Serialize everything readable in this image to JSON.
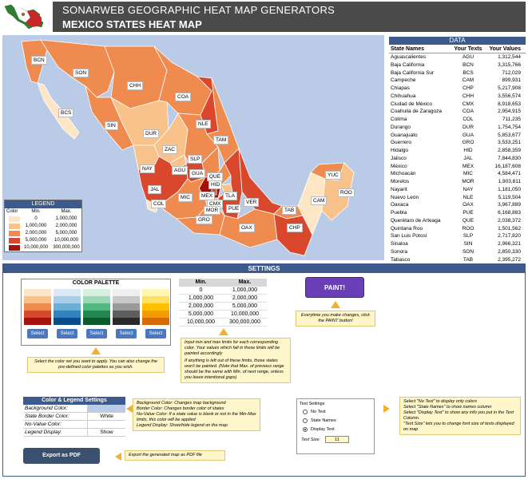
{
  "header": {
    "title": "SONARWEB GEOGRAPHIC HEAT MAP GENERATORS",
    "subtitle": "MEXICO STATES HEAT MAP"
  },
  "colors": {
    "header_bg": "#4a4a4a",
    "accent": "#3c5a8c",
    "map_bg": "#b9cbe6",
    "range": [
      "#fde6c6",
      "#f9c28a",
      "#ef8b4e",
      "#d9472c",
      "#a4120e"
    ]
  },
  "map_labels": [
    "BCN",
    "SON",
    "CHH",
    "COA",
    "NLE",
    "TAM",
    "BCS",
    "SIN",
    "DUR",
    "ZAC",
    "SLP",
    "NAY",
    "AGU",
    "JAL",
    "GUA",
    "QUE",
    "HID",
    "MEX",
    "CMX",
    "TLA",
    "PUE",
    "VER",
    "MIC",
    "MOR",
    "COL",
    "GRO",
    "OAX",
    "TAB",
    "CHP",
    "CAM",
    "YUC",
    "ROO"
  ],
  "legend": {
    "title": "LEGEND",
    "headers": [
      "Color",
      "Min.",
      "Max."
    ],
    "rows": [
      {
        "min": "0",
        "max": "1,000,000"
      },
      {
        "min": "1,000,000",
        "max": "2,000,000"
      },
      {
        "min": "2,000,000",
        "max": "5,000,000"
      },
      {
        "min": "5,000,000",
        "max": "10,000,000"
      },
      {
        "min": "10,000,000",
        "max": "300,000,000"
      }
    ]
  },
  "data_table": {
    "title": "DATA",
    "headers": [
      "State Names",
      "Your Texts",
      "Your Values"
    ],
    "rows": [
      [
        "Aguascalientes",
        "AGU",
        "1,312,544"
      ],
      [
        "Baja California",
        "BCN",
        "3,315,766"
      ],
      [
        "Baja California Sur",
        "BCS",
        "712,029"
      ],
      [
        "Campeche",
        "CAM",
        "899,931"
      ],
      [
        "Chiapas",
        "CHP",
        "5,217,908"
      ],
      [
        "Chihuahua",
        "CHH",
        "3,556,574"
      ],
      [
        "Ciudad de México",
        "CMX",
        "8,918,653"
      ],
      [
        "Coahuila de Zaragoza",
        "COA",
        "2,954,915"
      ],
      [
        "Colima",
        "COL",
        "711,235"
      ],
      [
        "Durango",
        "DUR",
        "1,754,754"
      ],
      [
        "Guanajuato",
        "GUA",
        "5,853,677"
      ],
      [
        "Guerrero",
        "GRO",
        "3,533,251"
      ],
      [
        "Hidalgo",
        "HID",
        "2,858,359"
      ],
      [
        "Jalisco",
        "JAL",
        "7,844,830"
      ],
      [
        "México",
        "MEX",
        "16,187,608"
      ],
      [
        "Michoacán",
        "MIC",
        "4,584,471"
      ],
      [
        "Morelos",
        "MOR",
        "1,903,811"
      ],
      [
        "Nayarit",
        "NAY",
        "1,181,050"
      ],
      [
        "Nuevo León",
        "NLE",
        "5,119,504"
      ],
      [
        "Oaxaca",
        "OAX",
        "3,967,889"
      ],
      [
        "Puebla",
        "PUE",
        "6,168,883"
      ],
      [
        "Querétaro de Arteaga",
        "QUE",
        "2,038,372"
      ],
      [
        "Quintana Roo",
        "ROO",
        "1,501,562"
      ],
      [
        "San Luis Potosí",
        "SLP",
        "2,717,820"
      ],
      [
        "Sinaloa",
        "SIN",
        "2,966,321"
      ],
      [
        "Sonora",
        "SON",
        "2,850,330"
      ],
      [
        "Tabasco",
        "TAB",
        "2,395,272"
      ],
      [
        "Tamaulipas",
        "TAM",
        "3,441,698"
      ],
      [
        "Tlaxcala",
        "TLA",
        "1,272,847"
      ],
      [
        "Veracruz",
        "VER",
        "8,112,505"
      ],
      [
        "Yucatán",
        "YUC",
        "2,097,175"
      ],
      [
        "Zacatecas",
        "ZAC",
        "1,579,209"
      ]
    ]
  },
  "settings": {
    "title": "SETTINGS",
    "palette_title": "COLOR PALETTE",
    "select_label": "Select",
    "palettes": [
      [
        "#fde6c6",
        "#f9c28a",
        "#ef8b4e",
        "#d9472c",
        "#a4120e"
      ],
      [
        "#dbe9f6",
        "#a9cde8",
        "#6baed6",
        "#3182bd",
        "#0b4c8c"
      ],
      [
        "#d6f0e0",
        "#9bd8b5",
        "#52b883",
        "#23884f",
        "#0a5a2c"
      ],
      [
        "#efefef",
        "#c8c8c8",
        "#9a9a9a",
        "#5e5e5e",
        "#2a2a2a"
      ],
      [
        "#fff7b0",
        "#ffe066",
        "#ffc000",
        "#f59b00",
        "#d46a00"
      ]
    ],
    "minmax_headers": [
      "Min.",
      "Max."
    ],
    "minmax_rows": [
      [
        "0",
        "1,000,000"
      ],
      [
        "1,000,000",
        "2,000,000"
      ],
      [
        "2,000,000",
        "5,000,000"
      ],
      [
        "5,000,000",
        "10,000,000"
      ],
      [
        "10,000,000",
        "300,000,000"
      ]
    ],
    "paint_label": "PAINT!",
    "paint_note": "Everytime you make changes, click the PAINT button!",
    "palette_note": "Select the color set you want to apply. You can also change the pre-defined color palettes as you wish.",
    "minmax_note_1": "Input min and max limits for each corresponding color. Your values which fall in these limits will be painted accordingly",
    "minmax_note_2": "If anything is left out of these limits, those states won't be painted. (Note that Max. of previous range should be the same with Min. of next range, unless you leave intentional gaps)",
    "cl_title": "Color & Legend Settings",
    "cl_rows": [
      {
        "key": "Background Color:",
        "value": ""
      },
      {
        "key": "State Border Color:",
        "value": "White"
      },
      {
        "key": "No-Value Color:",
        "value": ""
      },
      {
        "key": "Legend Display:",
        "value": "Show"
      }
    ],
    "cl_note_1": "Background Color: Changes map background",
    "cl_note_2": "Border Color: Changes border color of states",
    "cl_note_3": "No-Value Color: If a state value is blank or not in the Min-Max limits, this color will be applied",
    "cl_note_4": "Legend Display: Show/hide legend on the map",
    "export_label": "Export as PDF",
    "export_note": "Export the generated map as PDF file",
    "text_settings_title": "Text Settings",
    "text_options": [
      "No Text",
      "State Names",
      "Display Text"
    ],
    "text_size_label": "Text Size:",
    "text_size_value": "11",
    "ts_note_1": "Select \"No Text\" to display only colors",
    "ts_note_2": "Select \"State Names\" to show names column",
    "ts_note_3": "Select \"Display Text\" to show any info you put in the Text Column.",
    "ts_note_4": "\"Text Size\" lets you to change font size of texts displayed on map"
  }
}
